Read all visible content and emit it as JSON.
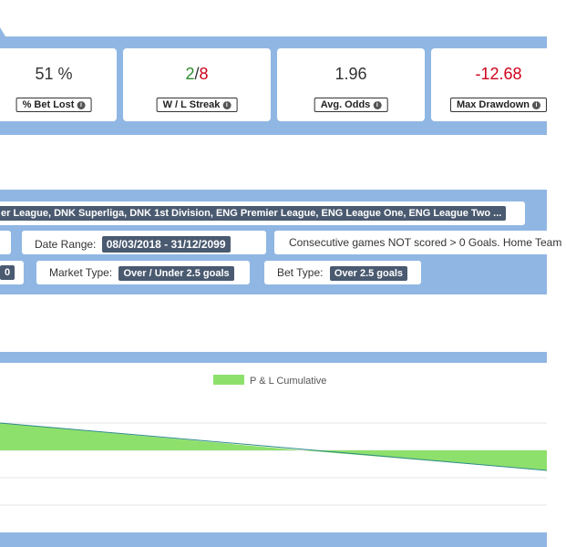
{
  "stats": [
    {
      "value": "51 %",
      "label": "% Bet Lost"
    },
    {
      "wins": "2",
      "sep": "/",
      "losses": "8",
      "label": "W / L Streak"
    },
    {
      "value": "1.96",
      "label": "Avg. Odds"
    },
    {
      "value": "-12.68",
      "label": "Max Drawdown"
    }
  ],
  "filters": {
    "leagues": "er League, DNK Superliga, DNK 1st Division, ENG Premier League, ENG League One, ENG League Two ...",
    "date_range_label": "Date Range:",
    "date_range_value": "08/03/2018 - 31/12/2099",
    "condition_text": "Consecutive games NOT scored > 0 Goals. Home Team",
    "left_value_1": "",
    "left_value_2": "0",
    "market_type_label": "Market Type:",
    "market_type_value": "Over / Under 2.5 goals",
    "bet_type_label": "Bet Type:",
    "bet_type_value": "Over 2.5 goals"
  },
  "chart_data": {
    "type": "area",
    "legend": [
      "P & L Cumulative"
    ],
    "legend_position": "top",
    "grid": true,
    "series_color": "#8ee06c",
    "line_color": "#2e8b8b"
  }
}
